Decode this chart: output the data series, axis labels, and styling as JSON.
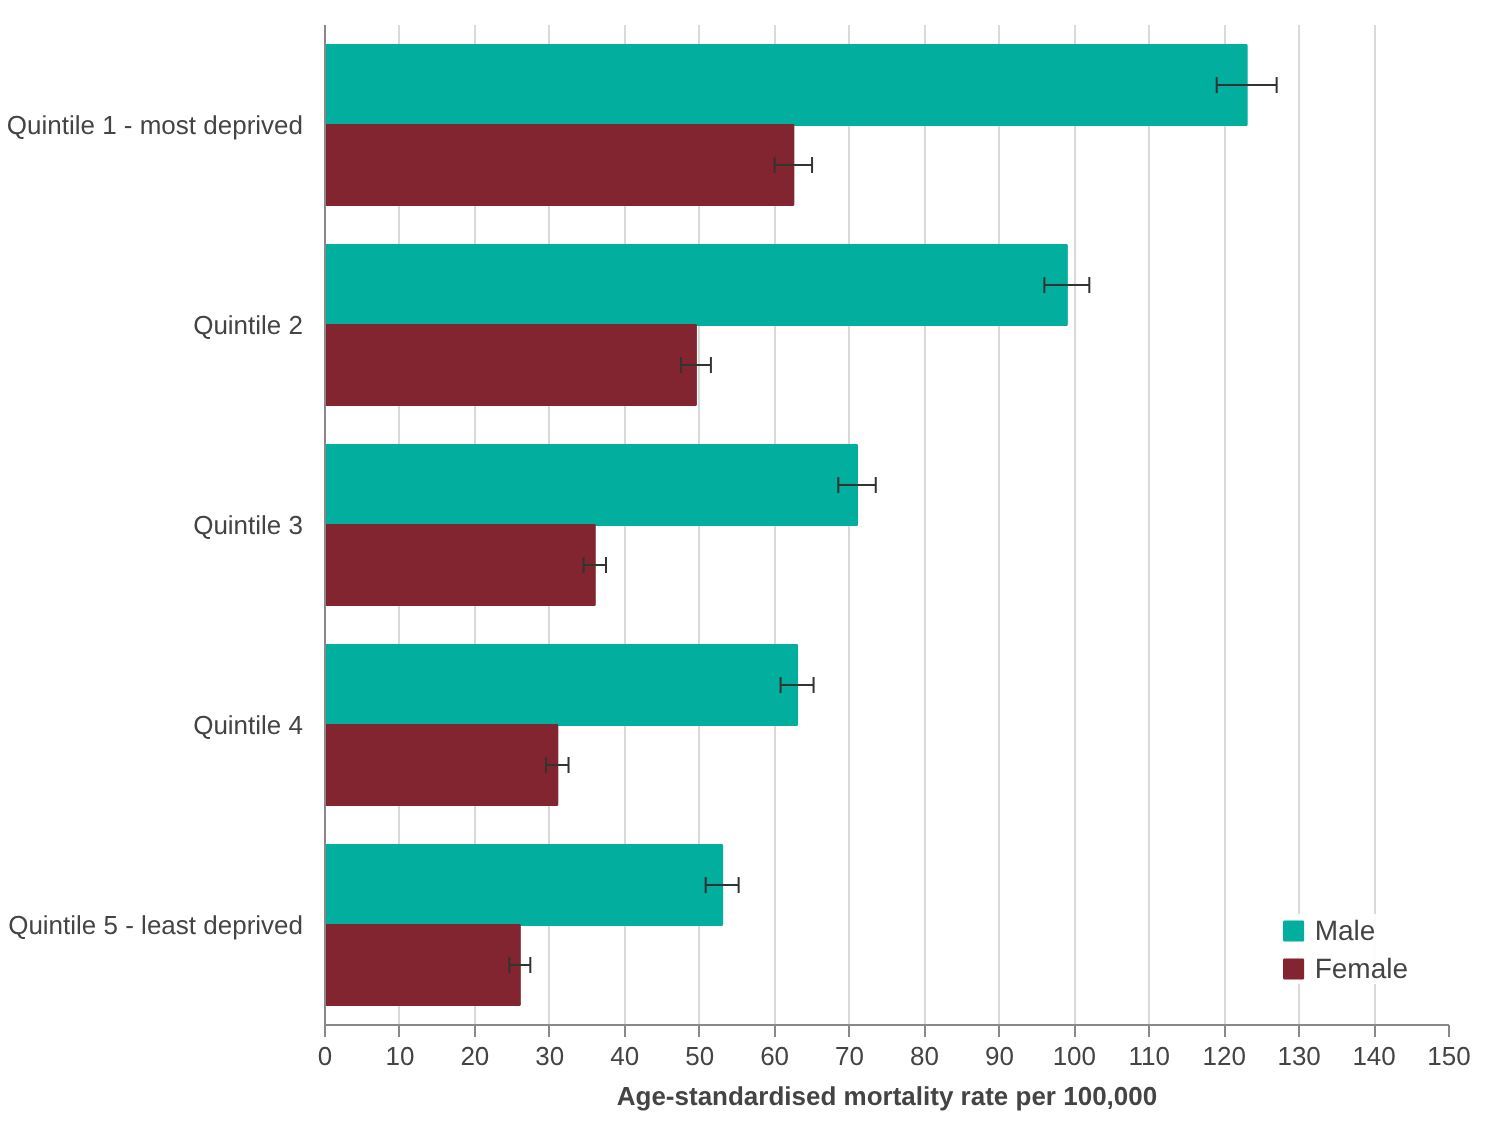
{
  "chart_data": {
    "type": "bar",
    "orientation": "horizontal",
    "xlabel": "Age-standardised mortality rate per 100,000",
    "categories": [
      "Quintile 1 - most deprived",
      "Quintile 2",
      "Quintile 3",
      "Quintile 4",
      "Quintile 5 - least deprived"
    ],
    "series": [
      {
        "name": "Male",
        "color": "#02ae9d",
        "values": [
          123,
          99,
          71,
          63,
          53
        ],
        "errors": [
          4,
          3,
          2.5,
          2.2,
          2.2
        ]
      },
      {
        "name": "Female",
        "color": "#832530",
        "values": [
          62.5,
          49.5,
          36,
          31,
          26
        ],
        "errors": [
          2.5,
          2,
          1.5,
          1.5,
          1.4
        ]
      }
    ],
    "xlim": [
      0,
      150
    ],
    "xticks": [
      0,
      10,
      20,
      30,
      40,
      50,
      60,
      70,
      80,
      90,
      100,
      110,
      120,
      130,
      140,
      150
    ],
    "grid": "x",
    "legend": "bottom right"
  }
}
